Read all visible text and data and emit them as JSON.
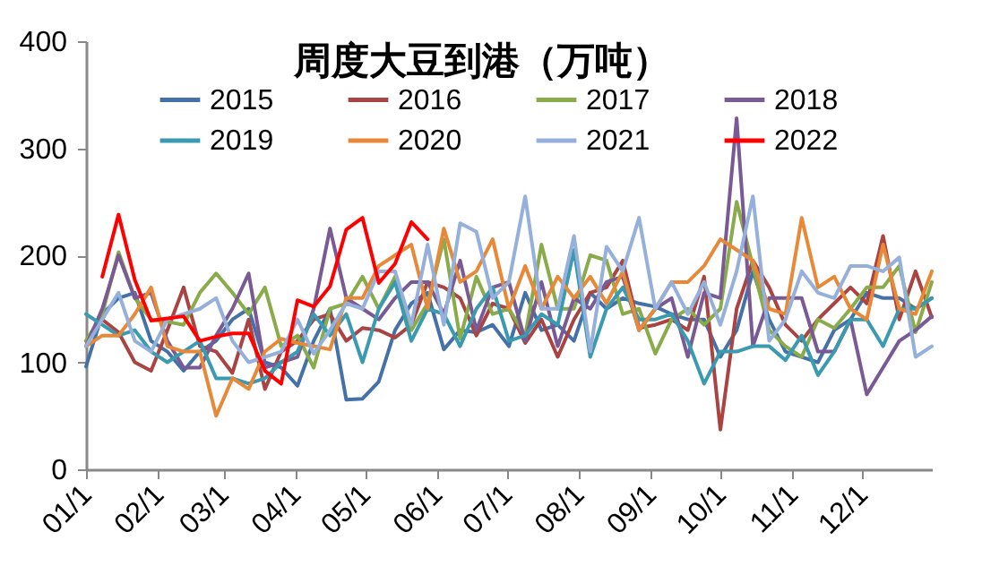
{
  "chart_data": {
    "type": "line",
    "title": "周度大豆到港（万吨）",
    "x": [
      "--01-01",
      "--01-08",
      "--01-15",
      "--01-22",
      "--01-29",
      "--02-05",
      "--02-12",
      "--02-19",
      "--02-26",
      "--03-05",
      "--03-12",
      "--03-19",
      "--03-26",
      "--04-02",
      "--04-09",
      "--04-16",
      "--04-23",
      "--04-30",
      "--05-07",
      "--05-14",
      "--05-21",
      "--05-28",
      "--06-04",
      "--06-11",
      "--06-18",
      "--06-25",
      "--07-02",
      "--07-09",
      "--07-16",
      "--07-23",
      "--07-30",
      "--08-06",
      "--08-13",
      "--08-20",
      "--08-27",
      "--09-03",
      "--09-10",
      "--09-17",
      "--09-24",
      "--10-01",
      "--10-08",
      "--10-15",
      "--10-22",
      "--10-29",
      "--11-05",
      "--11-12",
      "--11-19",
      "--11-26",
      "--12-03",
      "--12-10",
      "--12-17",
      "--12-24",
      "--12-31"
    ],
    "xlim": [
      "--01-01",
      "--12-31"
    ],
    "xticks": [
      {
        "value": "--01-01",
        "label": "01/1"
      },
      {
        "value": "--02-01",
        "label": "02/1"
      },
      {
        "value": "--03-01",
        "label": "03/1"
      },
      {
        "value": "--04-01",
        "label": "04/1"
      },
      {
        "value": "--05-01",
        "label": "05/1"
      },
      {
        "value": "--06-01",
        "label": "06/1"
      },
      {
        "value": "--07-01",
        "label": "07/1"
      },
      {
        "value": "--08-01",
        "label": "08/1"
      },
      {
        "value": "--09-01",
        "label": "09/1"
      },
      {
        "value": "--10-01",
        "label": "10/1"
      },
      {
        "value": "--11-01",
        "label": "11/1"
      },
      {
        "value": "--12-01",
        "label": "12/1"
      }
    ],
    "ylim": [
      0,
      400
    ],
    "yticks": [
      0,
      100,
      200,
      300,
      400
    ],
    "grid": false,
    "legend": "top",
    "line_style": "solid",
    "series": [
      {
        "name": "2015",
        "color": "#4472a8",
        "values": [
          96,
          145,
          160,
          165,
          120,
          110,
          92,
          110,
          120,
          140,
          150,
          100,
          95,
          78,
          120,
          150,
          65,
          66,
          82,
          130,
          155,
          165,
          112,
          130,
          128,
          135,
          115,
          165,
          130,
          135,
          120,
          165,
          150,
          160,
          155,
          152,
          145,
          140,
          140,
          105,
          130,
          185,
          140,
          110,
          105,
          100,
          130,
          140,
          165,
          160,
          160,
          150,
          160
        ]
      },
      {
        "name": "2016",
        "color": "#a94442",
        "values": [
          120,
          140,
          128,
          100,
          92,
          130,
          170,
          115,
          110,
          90,
          140,
          75,
          110,
          120,
          140,
          145,
          120,
          132,
          130,
          123,
          135,
          175,
          170,
          160,
          125,
          155,
          150,
          118,
          140,
          105,
          140,
          165,
          170,
          195,
          132,
          135,
          140,
          130,
          180,
          37,
          150,
          195,
          170,
          135,
          120,
          140,
          155,
          170,
          155,
          218,
          140,
          185,
          142
        ]
      },
      {
        "name": "2017",
        "color": "#8aab4a",
        "values": [
          120,
          145,
          203,
          160,
          140,
          138,
          135,
          165,
          183,
          165,
          145,
          170,
          115,
          125,
          95,
          150,
          155,
          180,
          150,
          180,
          130,
          155,
          215,
          122,
          180,
          145,
          150,
          125,
          210,
          150,
          150,
          200,
          195,
          145,
          150,
          108,
          140,
          150,
          135,
          150,
          250,
          190,
          130,
          115,
          105,
          140,
          132,
          150,
          170,
          170,
          190,
          128,
          175
        ]
      },
      {
        "name": "2018",
        "color": "#7a5a95",
        "values": [
          115,
          150,
          200,
          160,
          165,
          120,
          95,
          95,
          125,
          150,
          183,
          95,
          100,
          105,
          150,
          225,
          160,
          150,
          140,
          160,
          175,
          175,
          145,
          195,
          130,
          170,
          175,
          120,
          175,
          115,
          160,
          150,
          175,
          180,
          130,
          150,
          160,
          105,
          165,
          160,
          328,
          115,
          160,
          160,
          160,
          110,
          110,
          140,
          70,
          95,
          120,
          130,
          143
        ]
      },
      {
        "name": "2019",
        "color": "#3a9ab0",
        "values": [
          145,
          135,
          125,
          130,
          110,
          100,
          110,
          120,
          85,
          85,
          80,
          85,
          100,
          110,
          145,
          125,
          145,
          100,
          150,
          175,
          120,
          150,
          145,
          115,
          150,
          170,
          120,
          125,
          145,
          135,
          205,
          105,
          150,
          170,
          140,
          140,
          145,
          120,
          80,
          110,
          110,
          115,
          115,
          102,
          125,
          88,
          110,
          140,
          140,
          115,
          150,
          150,
          160
        ]
      },
      {
        "name": "2020",
        "color": "#e8893a",
        "values": [
          115,
          125,
          125,
          145,
          170,
          115,
          110,
          110,
          50,
          85,
          75,
          110,
          122,
          118,
          115,
          112,
          160,
          160,
          190,
          200,
          210,
          150,
          225,
          175,
          185,
          215,
          150,
          190,
          150,
          180,
          160,
          180,
          155,
          185,
          130,
          150,
          175,
          175,
          190,
          215,
          205,
          195,
          150,
          145,
          235,
          170,
          180,
          150,
          140,
          210,
          150,
          145,
          185
        ]
      },
      {
        "name": "2021",
        "color": "#95b0db",
        "values": [
          115,
          140,
          165,
          120,
          110,
          140,
          145,
          150,
          160,
          120,
          100,
          105,
          110,
          140,
          108,
          130,
          155,
          150,
          185,
          185,
          135,
          210,
          135,
          230,
          222,
          160,
          175,
          255,
          150,
          150,
          218,
          110,
          208,
          185,
          235,
          150,
          175,
          145,
          175,
          135,
          185,
          255,
          120,
          140,
          185,
          165,
          160,
          190,
          190,
          185,
          198,
          105,
          115
        ]
      },
      {
        "name": "2022",
        "color": "#ff0000",
        "values": [
          null,
          180,
          238,
          177,
          139,
          141,
          143,
          120,
          124,
          127,
          127,
          92,
          80,
          158,
          152,
          171,
          224,
          235,
          174,
          192,
          231,
          215,
          null,
          null,
          null,
          null,
          null,
          null,
          null,
          null,
          null,
          null,
          null,
          null,
          null,
          null,
          null,
          null,
          null,
          null,
          null,
          null,
          null,
          null,
          null,
          null,
          null,
          null,
          null,
          null,
          null,
          null,
          null
        ]
      }
    ]
  }
}
